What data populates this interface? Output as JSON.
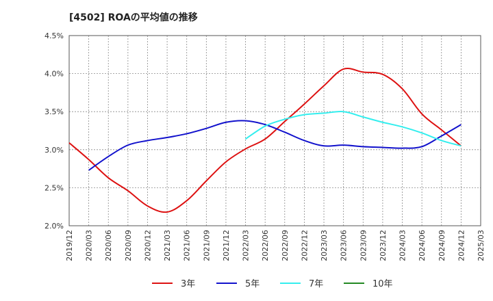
{
  "chart_data": {
    "type": "line",
    "title": "[4502]  ROAの平均値の推移",
    "xlabel": "",
    "ylabel": "",
    "ylim": [
      2.0,
      4.5
    ],
    "grid": true,
    "legend_placement": "bottom",
    "x_ticks": [
      "2019/12",
      "2020/03",
      "2020/06",
      "2020/09",
      "2020/12",
      "2021/03",
      "2021/06",
      "2021/09",
      "2021/12",
      "2022/03",
      "2022/06",
      "2022/09",
      "2022/12",
      "2023/03",
      "2023/06",
      "2023/09",
      "2023/12",
      "2024/03",
      "2024/06",
      "2024/09",
      "2024/12",
      "2025/03"
    ],
    "y_ticks": [
      "2.0%",
      "2.5%",
      "3.0%",
      "3.5%",
      "4.0%",
      "4.5%"
    ],
    "series": [
      {
        "name": "3年",
        "color": "#dd1111",
        "x": [
          "2019/12",
          "2020/03",
          "2020/06",
          "2020/09",
          "2020/12",
          "2021/03",
          "2021/06",
          "2021/09",
          "2021/12",
          "2022/03",
          "2022/06",
          "2022/09",
          "2022/12",
          "2023/03",
          "2023/06",
          "2023/09",
          "2023/12",
          "2024/03",
          "2024/06",
          "2024/09",
          "2024/12"
        ],
        "values": [
          3.09,
          2.87,
          2.63,
          2.46,
          2.26,
          2.18,
          2.33,
          2.59,
          2.84,
          3.01,
          3.14,
          3.37,
          3.6,
          3.84,
          4.06,
          4.02,
          3.99,
          3.8,
          3.47,
          3.26,
          3.05
        ]
      },
      {
        "name": "5年",
        "color": "#1111cc",
        "x": [
          "2020/03",
          "2020/06",
          "2020/09",
          "2020/12",
          "2021/03",
          "2021/06",
          "2021/09",
          "2021/12",
          "2022/03",
          "2022/06",
          "2022/09",
          "2022/12",
          "2023/03",
          "2023/06",
          "2023/09",
          "2023/12",
          "2024/03",
          "2024/06",
          "2024/09",
          "2024/12"
        ],
        "values": [
          2.73,
          2.91,
          3.06,
          3.12,
          3.16,
          3.21,
          3.28,
          3.36,
          3.38,
          3.33,
          3.23,
          3.12,
          3.05,
          3.06,
          3.04,
          3.03,
          3.02,
          3.04,
          3.18,
          3.33
        ]
      },
      {
        "name": "7年",
        "color": "#33eeee",
        "x": [
          "2022/03",
          "2022/06",
          "2022/09",
          "2022/12",
          "2023/03",
          "2023/06",
          "2023/09",
          "2023/12",
          "2024/03",
          "2024/06",
          "2024/09",
          "2024/12"
        ],
        "values": [
          3.14,
          3.31,
          3.4,
          3.46,
          3.48,
          3.5,
          3.43,
          3.36,
          3.3,
          3.22,
          3.12,
          3.05
        ]
      },
      {
        "name": "10年",
        "color": "#228822",
        "x": [],
        "values": []
      }
    ]
  }
}
